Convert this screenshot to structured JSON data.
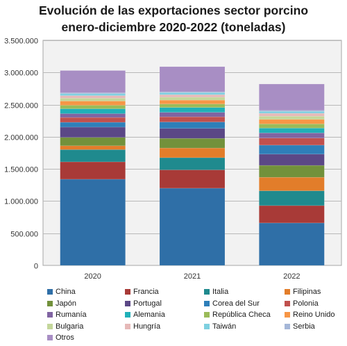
{
  "chart_data": {
    "type": "bar",
    "stacked": true,
    "title_lines": [
      "Evolución de las exportaciones sector porcino",
      "enero-diciembre  2020-2022 (toneladas)"
    ],
    "xlabel": "",
    "ylabel": "",
    "categories": [
      "2020",
      "2021",
      "2022"
    ],
    "ylim": [
      0,
      3500000
    ],
    "yticks": [
      0,
      500000,
      1000000,
      1500000,
      2000000,
      2500000,
      3000000,
      3500000
    ],
    "ytick_labels": [
      "0",
      "500.000",
      "1.000.000",
      "1.500.000",
      "2.000.000",
      "2.500.000",
      "3.000.000",
      "3.500.000"
    ],
    "grid": true,
    "legend_position": "bottom",
    "series": [
      {
        "name": "China",
        "color": "#2f6fa7",
        "values": [
          1340000,
          1200000,
          660000
        ]
      },
      {
        "name": "Francia",
        "color": "#a83a37",
        "values": [
          270000,
          285000,
          270000
        ]
      },
      {
        "name": "Italia",
        "color": "#1f8a8e",
        "values": [
          190000,
          190000,
          230000
        ]
      },
      {
        "name": "Filipinas",
        "color": "#e27d2a",
        "values": [
          60000,
          150000,
          210000
        ]
      },
      {
        "name": "Japón",
        "color": "#72913b",
        "values": [
          130000,
          150000,
          185000
        ]
      },
      {
        "name": "Portugal",
        "color": "#5b4886",
        "values": [
          160000,
          155000,
          175000
        ]
      },
      {
        "name": "Corea del Sur",
        "color": "#2e7fb9",
        "values": [
          75000,
          100000,
          140000
        ]
      },
      {
        "name": "Polonia",
        "color": "#c0504d",
        "values": [
          75000,
          80000,
          110000
        ]
      },
      {
        "name": "Rumanía",
        "color": "#8064a2",
        "values": [
          60000,
          70000,
          80000
        ]
      },
      {
        "name": "Alemania",
        "color": "#20b0b8",
        "values": [
          75000,
          75000,
          75000
        ]
      },
      {
        "name": "República Checa",
        "color": "#9bbb59",
        "values": [
          55000,
          55000,
          65000
        ]
      },
      {
        "name": "Reino Unido",
        "color": "#f79646",
        "values": [
          65000,
          60000,
          70000
        ]
      },
      {
        "name": "Bulgaria",
        "color": "#c4d79b",
        "values": [
          45000,
          45000,
          50000
        ]
      },
      {
        "name": "Hungría",
        "color": "#e6b9b8",
        "values": [
          40000,
          40000,
          45000
        ]
      },
      {
        "name": "Taiwán",
        "color": "#7ed0e0",
        "values": [
          30000,
          30000,
          30000
        ]
      },
      {
        "name": "Serbia",
        "color": "#a5b7d8",
        "values": [
          15000,
          15000,
          15000
        ]
      },
      {
        "name": "Otros",
        "color": "#a88ec4",
        "values": [
          345000,
          390000,
          410000
        ]
      }
    ]
  }
}
